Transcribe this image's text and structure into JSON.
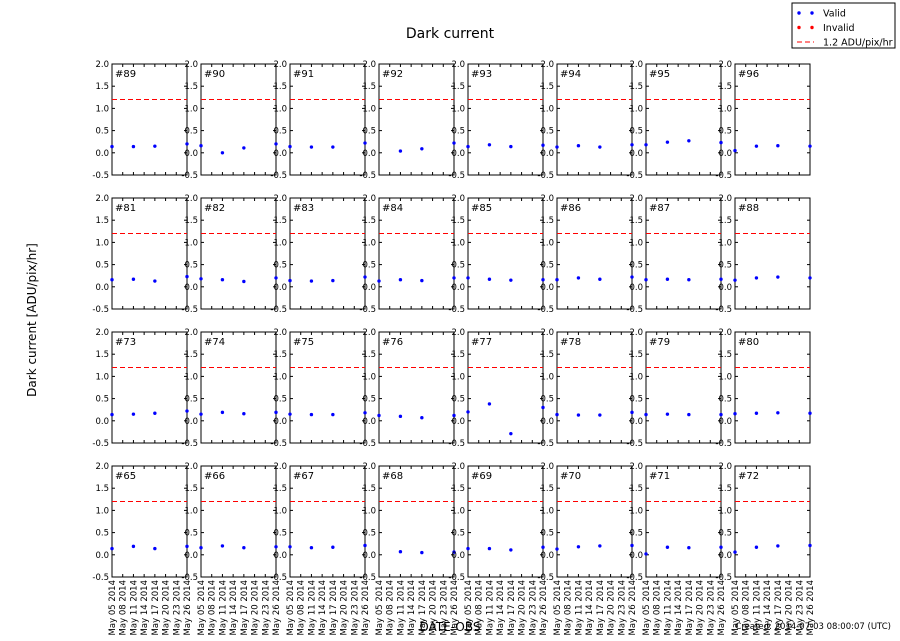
{
  "figure": {
    "title": "Dark current",
    "ylabel": "Dark current [ADU/pix/hr]",
    "xlabel": "DATE-OBS",
    "footer": "Created: 2014-07-03 08:00:07 (UTC)"
  },
  "legend": {
    "position": "top-right",
    "entries": [
      {
        "label": "Valid",
        "marker": "dot",
        "color": "#0000ff"
      },
      {
        "label": "Invalid",
        "marker": "dot",
        "color": "#ff0000"
      },
      {
        "label": "1.2 ADU/pix/hr",
        "marker": "dashed-line",
        "color": "#ff0000"
      }
    ]
  },
  "colors": {
    "valid": "#0000ff",
    "invalid": "#ff0000",
    "threshold": "#ff0000"
  },
  "chart_data": {
    "type": "scatter",
    "layout": {
      "rows": 4,
      "cols": 8
    },
    "ylim": [
      -0.5,
      2.0
    ],
    "yticks": [
      "2.0",
      "1.5",
      "1.0",
      "0.5",
      "0.0",
      "-0.5"
    ],
    "xticks": [
      "May 05 2014",
      "May 08 2014",
      "May 11 2014",
      "May 14 2014",
      "May 17 2014",
      "May 20 2014",
      "May 23 2014",
      "May 26 2014"
    ],
    "xlim": [
      "2014-05-05",
      "2014-05-26"
    ],
    "threshold": 1.2,
    "grid": false,
    "panels": [
      {
        "label": "#89",
        "points": [
          {
            "x": "2014-05-05",
            "y": 0.14
          },
          {
            "x": "2014-05-11",
            "y": 0.14
          },
          {
            "x": "2014-05-17",
            "y": 0.15
          },
          {
            "x": "2014-05-26",
            "y": 0.2
          }
        ]
      },
      {
        "label": "#90",
        "points": [
          {
            "x": "2014-05-05",
            "y": 0.16
          },
          {
            "x": "2014-05-11",
            "y": 0.0
          },
          {
            "x": "2014-05-17",
            "y": 0.11
          },
          {
            "x": "2014-05-26",
            "y": 0.2
          }
        ]
      },
      {
        "label": "#91",
        "points": [
          {
            "x": "2014-05-05",
            "y": 0.14
          },
          {
            "x": "2014-05-11",
            "y": 0.13
          },
          {
            "x": "2014-05-17",
            "y": 0.13
          },
          {
            "x": "2014-05-26",
            "y": 0.22
          }
        ]
      },
      {
        "label": "#92",
        "points": [
          {
            "x": "2014-05-11",
            "y": 0.04
          },
          {
            "x": "2014-05-17",
            "y": 0.09
          },
          {
            "x": "2014-05-26",
            "y": 0.22
          }
        ]
      },
      {
        "label": "#93",
        "points": [
          {
            "x": "2014-05-05",
            "y": 0.14
          },
          {
            "x": "2014-05-11",
            "y": 0.18
          },
          {
            "x": "2014-05-17",
            "y": 0.14
          },
          {
            "x": "2014-05-26",
            "y": 0.17
          }
        ]
      },
      {
        "label": "#94",
        "points": [
          {
            "x": "2014-05-05",
            "y": 0.13
          },
          {
            "x": "2014-05-11",
            "y": 0.16
          },
          {
            "x": "2014-05-17",
            "y": 0.13
          },
          {
            "x": "2014-05-26",
            "y": 0.18
          }
        ]
      },
      {
        "label": "#95",
        "points": [
          {
            "x": "2014-05-05",
            "y": 0.18
          },
          {
            "x": "2014-05-11",
            "y": 0.24
          },
          {
            "x": "2014-05-17",
            "y": 0.27
          },
          {
            "x": "2014-05-26",
            "y": 0.23
          }
        ]
      },
      {
        "label": "#96",
        "points": [
          {
            "x": "2014-05-05",
            "y": 0.05
          },
          {
            "x": "2014-05-11",
            "y": 0.15
          },
          {
            "x": "2014-05-17",
            "y": 0.16
          },
          {
            "x": "2014-05-26",
            "y": 0.15
          }
        ]
      },
      {
        "label": "#81",
        "points": [
          {
            "x": "2014-05-05",
            "y": 0.16
          },
          {
            "x": "2014-05-11",
            "y": 0.17
          },
          {
            "x": "2014-05-17",
            "y": 0.13
          },
          {
            "x": "2014-05-26",
            "y": 0.23
          }
        ]
      },
      {
        "label": "#82",
        "points": [
          {
            "x": "2014-05-05",
            "y": 0.18
          },
          {
            "x": "2014-05-11",
            "y": 0.16
          },
          {
            "x": "2014-05-17",
            "y": 0.12
          },
          {
            "x": "2014-05-26",
            "y": 0.2
          }
        ]
      },
      {
        "label": "#83",
        "points": [
          {
            "x": "2014-05-05",
            "y": 0.14
          },
          {
            "x": "2014-05-11",
            "y": 0.13
          },
          {
            "x": "2014-05-17",
            "y": 0.14
          },
          {
            "x": "2014-05-26",
            "y": 0.22
          }
        ]
      },
      {
        "label": "#84",
        "points": [
          {
            "x": "2014-05-05",
            "y": 0.13
          },
          {
            "x": "2014-05-11",
            "y": 0.16
          },
          {
            "x": "2014-05-17",
            "y": 0.14
          },
          {
            "x": "2014-05-26",
            "y": 0.2
          }
        ]
      },
      {
        "label": "#85",
        "points": [
          {
            "x": "2014-05-05",
            "y": 0.2
          },
          {
            "x": "2014-05-11",
            "y": 0.17
          },
          {
            "x": "2014-05-17",
            "y": 0.15
          },
          {
            "x": "2014-05-26",
            "y": 0.16
          }
        ]
      },
      {
        "label": "#86",
        "points": [
          {
            "x": "2014-05-05",
            "y": 0.16
          },
          {
            "x": "2014-05-11",
            "y": 0.2
          },
          {
            "x": "2014-05-17",
            "y": 0.17
          },
          {
            "x": "2014-05-26",
            "y": 0.22
          }
        ]
      },
      {
        "label": "#87",
        "points": [
          {
            "x": "2014-05-05",
            "y": 0.16
          },
          {
            "x": "2014-05-11",
            "y": 0.17
          },
          {
            "x": "2014-05-17",
            "y": 0.16
          },
          {
            "x": "2014-05-26",
            "y": 0.17
          }
        ]
      },
      {
        "label": "#88",
        "points": [
          {
            "x": "2014-05-05",
            "y": 0.15
          },
          {
            "x": "2014-05-11",
            "y": 0.2
          },
          {
            "x": "2014-05-17",
            "y": 0.22
          },
          {
            "x": "2014-05-26",
            "y": 0.2
          }
        ]
      },
      {
        "label": "#73",
        "points": [
          {
            "x": "2014-05-05",
            "y": 0.14
          },
          {
            "x": "2014-05-11",
            "y": 0.15
          },
          {
            "x": "2014-05-17",
            "y": 0.17
          },
          {
            "x": "2014-05-26",
            "y": 0.22
          }
        ]
      },
      {
        "label": "#74",
        "points": [
          {
            "x": "2014-05-05",
            "y": 0.15
          },
          {
            "x": "2014-05-11",
            "y": 0.19
          },
          {
            "x": "2014-05-17",
            "y": 0.16
          },
          {
            "x": "2014-05-26",
            "y": 0.19
          }
        ]
      },
      {
        "label": "#75",
        "points": [
          {
            "x": "2014-05-05",
            "y": 0.15
          },
          {
            "x": "2014-05-11",
            "y": 0.14
          },
          {
            "x": "2014-05-17",
            "y": 0.14
          },
          {
            "x": "2014-05-26",
            "y": 0.18
          }
        ]
      },
      {
        "label": "#76",
        "points": [
          {
            "x": "2014-05-05",
            "y": 0.12
          },
          {
            "x": "2014-05-11",
            "y": 0.1
          },
          {
            "x": "2014-05-17",
            "y": 0.07
          },
          {
            "x": "2014-05-26",
            "y": 0.12
          }
        ]
      },
      {
        "label": "#77",
        "points": [
          {
            "x": "2014-05-05",
            "y": 0.2
          },
          {
            "x": "2014-05-11",
            "y": 0.38
          },
          {
            "x": "2014-05-17",
            "y": -0.29
          },
          {
            "x": "2014-05-26",
            "y": 0.3
          }
        ]
      },
      {
        "label": "#78",
        "points": [
          {
            "x": "2014-05-05",
            "y": 0.14
          },
          {
            "x": "2014-05-11",
            "y": 0.13
          },
          {
            "x": "2014-05-17",
            "y": 0.13
          },
          {
            "x": "2014-05-26",
            "y": 0.19
          }
        ]
      },
      {
        "label": "#79",
        "points": [
          {
            "x": "2014-05-05",
            "y": 0.14
          },
          {
            "x": "2014-05-11",
            "y": 0.15
          },
          {
            "x": "2014-05-17",
            "y": 0.14
          },
          {
            "x": "2014-05-26",
            "y": 0.14
          }
        ]
      },
      {
        "label": "#80",
        "points": [
          {
            "x": "2014-05-05",
            "y": 0.16
          },
          {
            "x": "2014-05-11",
            "y": 0.17
          },
          {
            "x": "2014-05-17",
            "y": 0.18
          },
          {
            "x": "2014-05-26",
            "y": 0.17
          }
        ]
      },
      {
        "label": "#65",
        "points": [
          {
            "x": "2014-05-05",
            "y": 0.14
          },
          {
            "x": "2014-05-11",
            "y": 0.19
          },
          {
            "x": "2014-05-17",
            "y": 0.14
          },
          {
            "x": "2014-05-26",
            "y": 0.19
          }
        ]
      },
      {
        "label": "#66",
        "points": [
          {
            "x": "2014-05-05",
            "y": 0.16
          },
          {
            "x": "2014-05-11",
            "y": 0.2
          },
          {
            "x": "2014-05-17",
            "y": 0.16
          },
          {
            "x": "2014-05-26",
            "y": 0.18
          }
        ]
      },
      {
        "label": "#67",
        "points": [
          {
            "x": "2014-05-05",
            "y": 0.18
          },
          {
            "x": "2014-05-11",
            "y": 0.16
          },
          {
            "x": "2014-05-17",
            "y": 0.17
          },
          {
            "x": "2014-05-26",
            "y": 0.21
          }
        ]
      },
      {
        "label": "#68",
        "points": [
          {
            "x": "2014-05-11",
            "y": 0.07
          },
          {
            "x": "2014-05-17",
            "y": 0.05
          },
          {
            "x": "2014-05-26",
            "y": 0.06
          }
        ]
      },
      {
        "label": "#69",
        "points": [
          {
            "x": "2014-05-05",
            "y": 0.14
          },
          {
            "x": "2014-05-11",
            "y": 0.14
          },
          {
            "x": "2014-05-17",
            "y": 0.11
          },
          {
            "x": "2014-05-26",
            "y": 0.17
          }
        ]
      },
      {
        "label": "#70",
        "points": [
          {
            "x": "2014-05-05",
            "y": 0.13
          },
          {
            "x": "2014-05-11",
            "y": 0.18
          },
          {
            "x": "2014-05-17",
            "y": 0.2
          },
          {
            "x": "2014-05-26",
            "y": 0.21
          }
        ]
      },
      {
        "label": "#71",
        "points": [
          {
            "x": "2014-05-05",
            "y": 0.02
          },
          {
            "x": "2014-05-11",
            "y": 0.17
          },
          {
            "x": "2014-05-17",
            "y": 0.16
          },
          {
            "x": "2014-05-26",
            "y": 0.17
          }
        ]
      },
      {
        "label": "#72",
        "points": [
          {
            "x": "2014-05-05",
            "y": 0.06
          },
          {
            "x": "2014-05-11",
            "y": 0.17
          },
          {
            "x": "2014-05-17",
            "y": 0.2
          },
          {
            "x": "2014-05-26",
            "y": 0.21
          }
        ]
      }
    ]
  }
}
